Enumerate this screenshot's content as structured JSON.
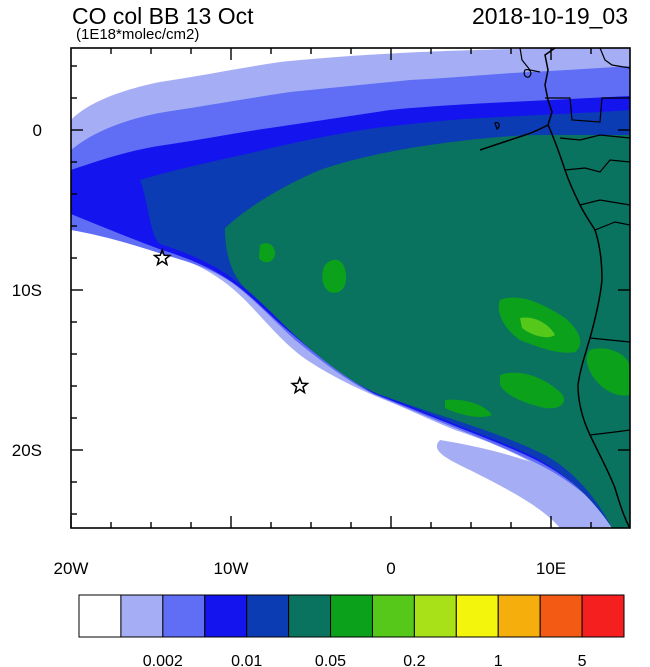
{
  "header": {
    "title": "CO col BB 13 Oct",
    "units": "(1E18*molec/cm2)",
    "datetime": "2018-10-19_03"
  },
  "map": {
    "x_ticks": [
      "20W",
      "10W",
      "0",
      "10E"
    ],
    "y_ticks": [
      "0",
      "10S",
      "20S"
    ],
    "markers": [
      {
        "symbol": "star",
        "lon": -14.3,
        "lat": -8.0
      },
      {
        "symbol": "star",
        "lon": -5.7,
        "lat": -16.0
      }
    ]
  },
  "colorbar": {
    "colors": [
      "#ffffff",
      "#a5aef5",
      "#5f6ef5",
      "#1414ef",
      "#0b3cb4",
      "#0a7360",
      "#0ca11b",
      "#55c81a",
      "#a8e117",
      "#f3f50d",
      "#f5ae0b",
      "#f35a14",
      "#f51f1f"
    ],
    "labels": [
      "0.002",
      "0.01",
      "0.05",
      "0.2",
      "1",
      "5"
    ]
  }
}
